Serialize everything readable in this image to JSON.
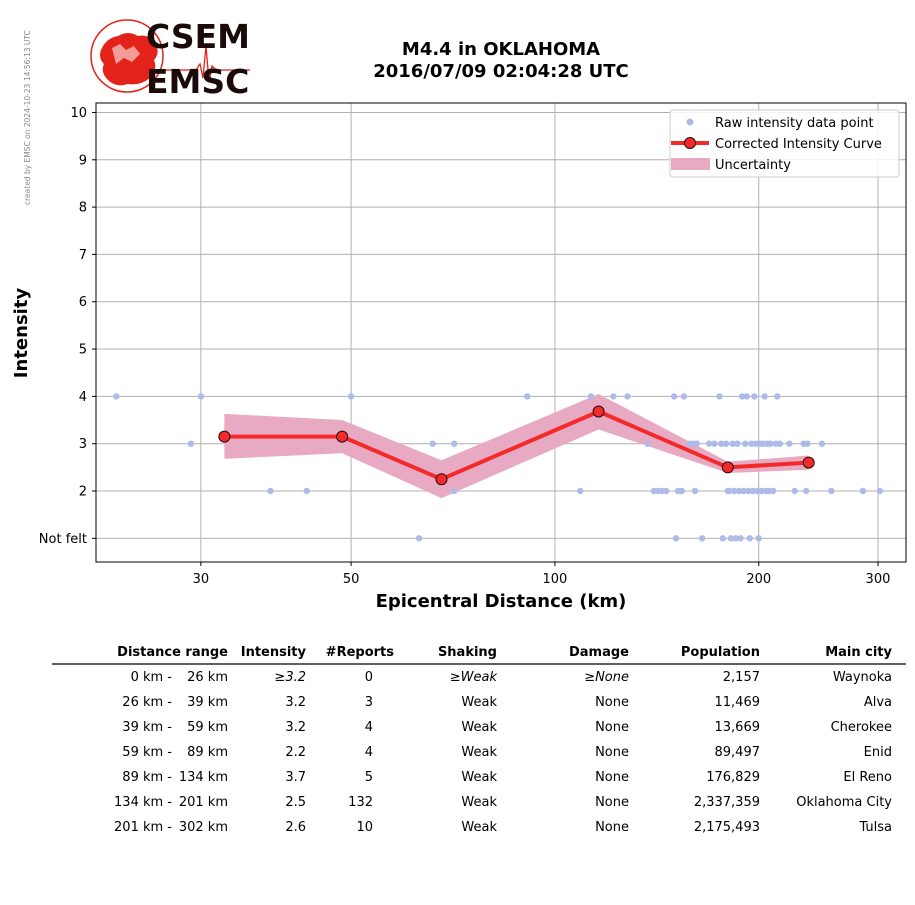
{
  "credit": "created by EMSC on 2024-10-23 14:56:13 UTC",
  "logo": {
    "line1": "CSEM",
    "line2": "EMSC",
    "colors": {
      "red": "#e32219",
      "dark": "#1a0a0a"
    }
  },
  "title": {
    "line1": "M4.4 in OKLAHOMA",
    "line2": "2016/07/09 02:04:28 UTC"
  },
  "chart_data": {
    "type": "line",
    "xlabel": "Epicentral Distance (km)",
    "ylabel": "Intensity",
    "x_scale": "log",
    "xlim": [
      21,
      330
    ],
    "ylim": [
      0.5,
      10.2
    ],
    "x_ticks": [
      {
        "value": 30,
        "label": "30"
      },
      {
        "value": 50,
        "label": "50"
      },
      {
        "value": 100,
        "label": "100"
      },
      {
        "value": 200,
        "label": "200"
      },
      {
        "value": 300,
        "label": "300"
      }
    ],
    "y_ticks": [
      {
        "value": 1,
        "label": "Not felt"
      },
      {
        "value": 2,
        "label": "2"
      },
      {
        "value": 3,
        "label": "3"
      },
      {
        "value": 4,
        "label": "4"
      },
      {
        "value": 5,
        "label": "5"
      },
      {
        "value": 6,
        "label": "6"
      },
      {
        "value": 7,
        "label": "7"
      },
      {
        "value": 8,
        "label": "8"
      },
      {
        "value": 9,
        "label": "9"
      },
      {
        "value": 10,
        "label": "10"
      }
    ],
    "grid": true,
    "legend_position": "top-right",
    "colors": {
      "raw": "#aebbe8",
      "curve": "#f42a2a",
      "uncertainty": "#e8a9c3",
      "marker_edge": "#2a0a0a",
      "grid": "#b0b0b0"
    },
    "legend": [
      {
        "label": "Raw intensity data point",
        "kind": "point"
      },
      {
        "label": "Corrected Intensity Curve",
        "kind": "line"
      },
      {
        "label": "Uncertainty",
        "kind": "band"
      }
    ],
    "curve": {
      "x": [
        32.5,
        48.5,
        68,
        116,
        180,
        237
      ],
      "y": [
        3.15,
        3.15,
        2.25,
        3.68,
        2.5,
        2.6
      ]
    },
    "uncertainty": {
      "x": [
        32.5,
        48.5,
        68,
        116,
        180,
        237
      ],
      "lower": [
        2.68,
        2.8,
        1.85,
        3.3,
        2.38,
        2.45
      ],
      "upper": [
        3.63,
        3.5,
        2.65,
        4.05,
        2.62,
        2.75
      ]
    },
    "raw_points": [
      [
        22.5,
        4
      ],
      [
        29,
        3
      ],
      [
        30,
        4
      ],
      [
        38,
        2
      ],
      [
        43,
        2
      ],
      [
        50,
        4
      ],
      [
        63,
        1
      ],
      [
        66,
        3
      ],
      [
        71,
        3
      ],
      [
        71,
        2
      ],
      [
        91,
        4
      ],
      [
        109,
        2
      ],
      [
        113,
        4
      ],
      [
        122,
        4
      ],
      [
        128,
        4
      ],
      [
        137,
        3
      ],
      [
        140,
        2
      ],
      [
        142,
        2
      ],
      [
        144,
        2
      ],
      [
        146,
        2
      ],
      [
        150,
        4
      ],
      [
        151,
        1
      ],
      [
        152,
        2
      ],
      [
        153,
        2
      ],
      [
        154,
        2
      ],
      [
        155,
        4
      ],
      [
        158,
        3
      ],
      [
        160,
        3
      ],
      [
        161,
        2
      ],
      [
        162,
        3
      ],
      [
        165,
        1
      ],
      [
        169,
        3
      ],
      [
        172,
        3
      ],
      [
        175,
        4
      ],
      [
        176,
        3
      ],
      [
        177,
        1
      ],
      [
        179,
        3
      ],
      [
        180,
        2
      ],
      [
        181,
        2
      ],
      [
        182,
        1
      ],
      [
        183,
        3
      ],
      [
        184,
        2
      ],
      [
        185,
        1
      ],
      [
        186,
        3
      ],
      [
        187,
        2
      ],
      [
        188,
        1
      ],
      [
        189,
        4
      ],
      [
        190,
        2
      ],
      [
        191,
        3
      ],
      [
        192,
        4
      ],
      [
        193,
        2
      ],
      [
        194,
        1
      ],
      [
        195,
        3
      ],
      [
        196,
        2
      ],
      [
        197,
        4
      ],
      [
        198,
        3
      ],
      [
        199,
        2
      ],
      [
        200,
        1
      ],
      [
        201,
        3
      ],
      [
        202,
        2
      ],
      [
        203,
        3
      ],
      [
        204,
        4
      ],
      [
        205,
        2
      ],
      [
        206,
        3
      ],
      [
        207,
        2
      ],
      [
        208,
        3
      ],
      [
        210,
        2
      ],
      [
        212,
        3
      ],
      [
        213,
        4
      ],
      [
        215,
        3
      ],
      [
        222,
        3
      ],
      [
        226,
        2
      ],
      [
        233,
        3
      ],
      [
        235,
        2
      ],
      [
        236,
        3
      ],
      [
        248,
        3
      ],
      [
        256,
        2
      ],
      [
        285,
        2
      ],
      [
        302,
        2
      ]
    ]
  },
  "table": {
    "headers": [
      "Distance range",
      "Intensity",
      "#Reports",
      "Shaking",
      "Damage",
      "Population",
      "Main city"
    ],
    "rows": [
      {
        "range_from": "0 km -",
        "range_to": "26 km",
        "intensity": "≥3.2",
        "reports": "0",
        "shaking": "≥Weak",
        "damage": "≥None",
        "population": "2,157",
        "city": "Waynoka",
        "italic": true
      },
      {
        "range_from": "26 km -",
        "range_to": "39 km",
        "intensity": "3.2",
        "reports": "3",
        "shaking": "Weak",
        "damage": "None",
        "population": "11,469",
        "city": "Alva",
        "italic": false
      },
      {
        "range_from": "39 km -",
        "range_to": "59 km",
        "intensity": "3.2",
        "reports": "4",
        "shaking": "Weak",
        "damage": "None",
        "population": "13,669",
        "city": "Cherokee",
        "italic": false
      },
      {
        "range_from": "59 km -",
        "range_to": "89 km",
        "intensity": "2.2",
        "reports": "4",
        "shaking": "Weak",
        "damage": "None",
        "population": "89,497",
        "city": "Enid",
        "italic": false
      },
      {
        "range_from": "89 km -",
        "range_to": "134 km",
        "intensity": "3.7",
        "reports": "5",
        "shaking": "Weak",
        "damage": "None",
        "population": "176,829",
        "city": "El Reno",
        "italic": false
      },
      {
        "range_from": "134 km -",
        "range_to": "201 km",
        "intensity": "2.5",
        "reports": "132",
        "shaking": "Weak",
        "damage": "None",
        "population": "2,337,359",
        "city": "Oklahoma City",
        "italic": false
      },
      {
        "range_from": "201 km -",
        "range_to": "302 km",
        "intensity": "2.6",
        "reports": "10",
        "shaking": "Weak",
        "damage": "None",
        "population": "2,175,493",
        "city": "Tulsa",
        "italic": false
      }
    ]
  }
}
